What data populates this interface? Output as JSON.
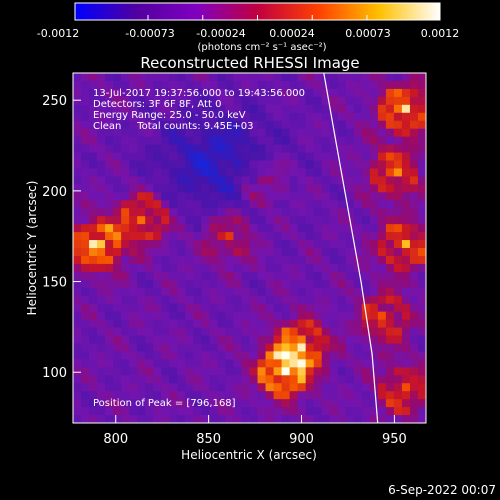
{
  "colorbar": {
    "tick_labels": [
      "-0.0012",
      "-0.00073",
      "-0.00024",
      "0.00024",
      "0.00073",
      "0.0012"
    ],
    "unit_label": "(photons cm⁻² s⁻¹ asec⁻²)",
    "colors": [
      "#0000ff",
      "#5000a0",
      "#8000c0",
      "#c00040",
      "#ff4000",
      "#ffc000",
      "#ffffff"
    ]
  },
  "annotations": {
    "time_range": "13-Jul-2017 19:37:56.000 to 19:43:56.000",
    "detectors": "Detectors: 3F 6F 8F, Att 0",
    "energy": "Energy Range: 25.0 - 50.0 keV",
    "clean": "Clean     Total counts: 9.45E+03",
    "peak": "Position of Peak = [796,168]"
  },
  "footer_date": "6-Sep-2022 00:07",
  "chart_data": {
    "type": "heatmap",
    "title": "Reconstructed RHESSI Image",
    "xlabel": "Heliocentric X (arcsec)",
    "ylabel": "Heliocentric Y (arcsec)",
    "xlim": [
      777,
      967
    ],
    "ylim": [
      72,
      265
    ],
    "xticks": [
      800,
      850,
      900,
      950
    ],
    "yticks": [
      100,
      150,
      200,
      250
    ],
    "color_range": [
      -0.0012,
      0.0012
    ],
    "limb_curve": {
      "x": [
        912,
        918,
        925,
        932,
        938,
        941
      ],
      "y": [
        265,
        230,
        190,
        150,
        110,
        72
      ]
    },
    "bright_regions": [
      {
        "x": 790,
        "y": 170,
        "level": 0.85
      },
      {
        "x": 815,
        "y": 185,
        "level": 0.65
      },
      {
        "x": 890,
        "y": 100,
        "level": 0.9
      },
      {
        "x": 900,
        "y": 115,
        "level": 0.7
      },
      {
        "x": 955,
        "y": 245,
        "level": 0.75
      },
      {
        "x": 950,
        "y": 210,
        "level": 0.6
      },
      {
        "x": 955,
        "y": 170,
        "level": 0.65
      },
      {
        "x": 945,
        "y": 130,
        "level": 0.55
      },
      {
        "x": 955,
        "y": 90,
        "level": 0.55
      },
      {
        "x": 860,
        "y": 175,
        "level": 0.45
      },
      {
        "x": 880,
        "y": 205,
        "level": 0.4
      }
    ],
    "peak": {
      "x": 796,
      "y": 168
    }
  }
}
